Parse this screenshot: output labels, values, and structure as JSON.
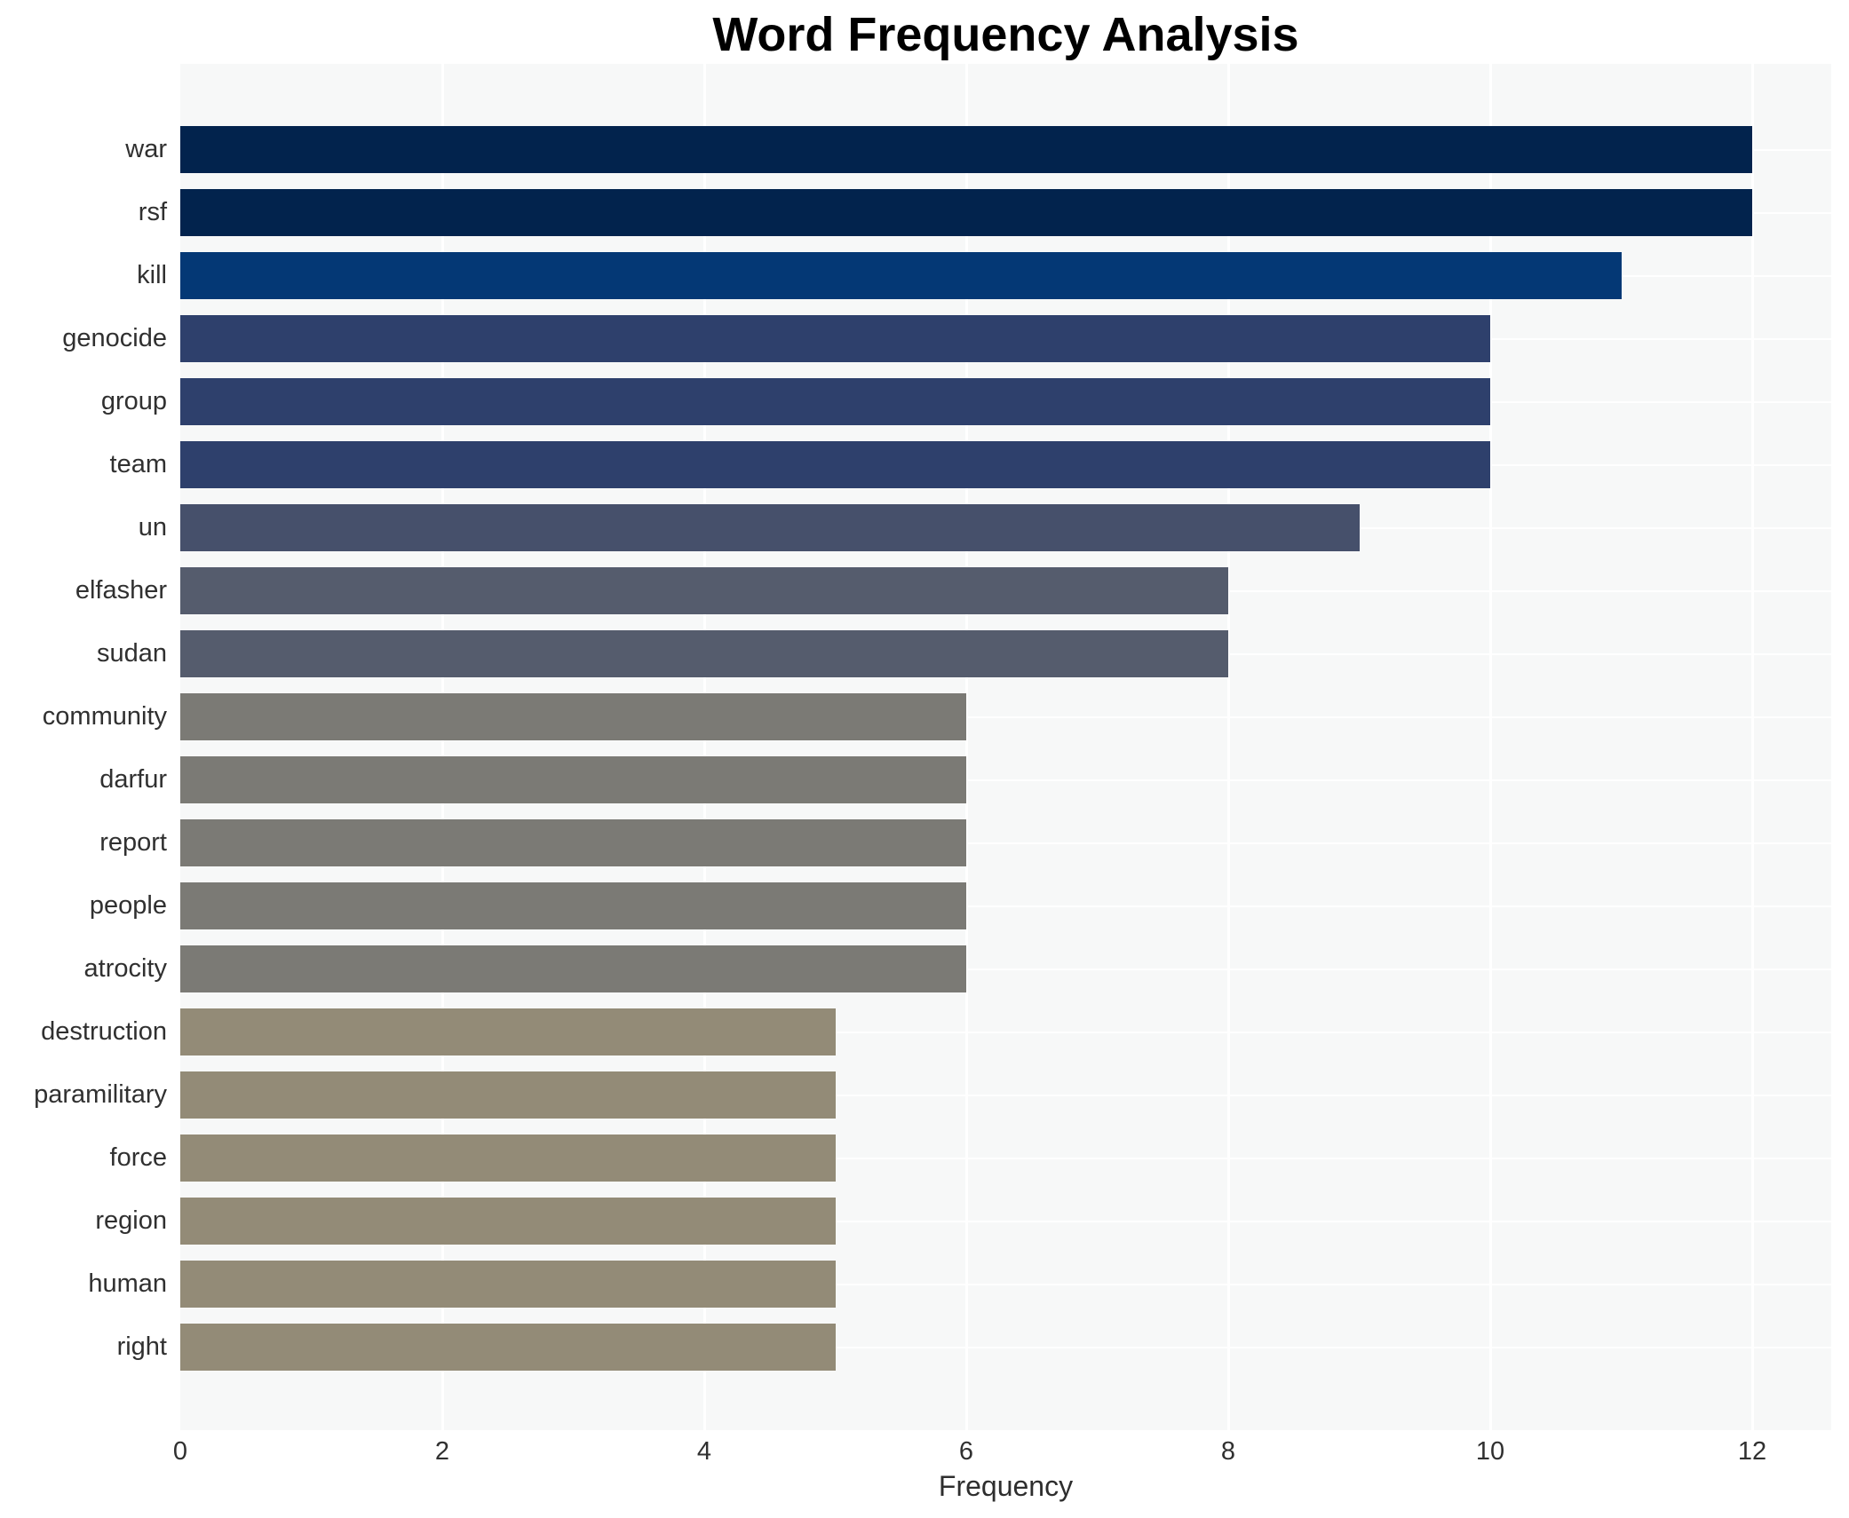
{
  "chart_data": {
    "type": "bar",
    "orientation": "horizontal",
    "title": "Word Frequency Analysis",
    "xlabel": "Frequency",
    "ylabel": "",
    "categories": [
      "war",
      "rsf",
      "kill",
      "genocide",
      "group",
      "team",
      "un",
      "elfasher",
      "sudan",
      "community",
      "darfur",
      "report",
      "people",
      "atrocity",
      "destruction",
      "paramilitary",
      "force",
      "region",
      "human",
      "right"
    ],
    "values": [
      12,
      12,
      11,
      10,
      10,
      10,
      9,
      8,
      8,
      6,
      6,
      6,
      6,
      6,
      5,
      5,
      5,
      5,
      5,
      5
    ],
    "bar_colors": [
      "#02234d",
      "#02234d",
      "#043875",
      "#2e406c",
      "#2e406c",
      "#2e406c",
      "#46506b",
      "#555c6d",
      "#555c6d",
      "#7b7a75",
      "#7b7a75",
      "#7b7a75",
      "#7b7a75",
      "#7b7a75",
      "#938b77",
      "#938b77",
      "#938b77",
      "#938b77",
      "#938b77",
      "#938b77"
    ],
    "xticks": [
      0,
      2,
      4,
      6,
      8,
      10,
      12
    ],
    "xlim": [
      0,
      12.6
    ],
    "grid": true,
    "legend_position": "none",
    "plot_bg_color": "#f7f8f8",
    "grid_color": "#ffffff",
    "title_color": "#000000",
    "tick_color": "#303030"
  }
}
